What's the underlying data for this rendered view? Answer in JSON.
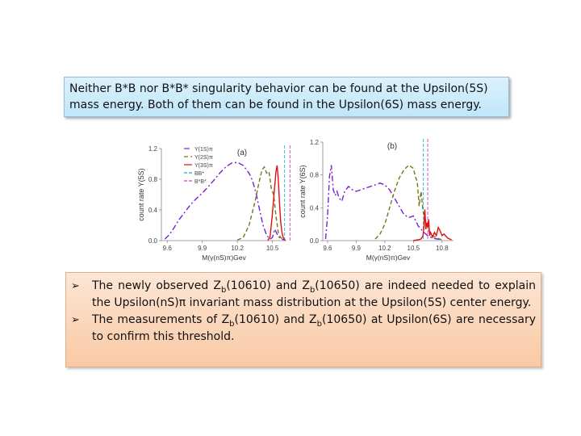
{
  "top_box": {
    "line1": "Neither B*B nor B*B* singularity behavior can be found at the Upsilon(5S)",
    "line2": "mass energy. Both of them can be found in the Upsilon(6S) mass energy."
  },
  "bottom_box": {
    "bullets": [
      {
        "pre": "The newly observed Z",
        "sub1": "b",
        "mid": "(10610) and Z",
        "sub2": "b",
        "post": "(10650) are indeed needed to explain the Upsilon(nS)π invariant mass distribution at the Upsilon(5S) center energy."
      },
      {
        "pre": "The measurements of Z",
        "sub1": "b",
        "mid": "(10610) and Z",
        "sub2": "b",
        "post": "(10650) at Upsilon(6S) are necessary to confirm this threshold."
      }
    ]
  },
  "chart_data": [
    {
      "type": "line",
      "panel_label": "(a)",
      "xlabel": "M(γ(nS)π)Gev",
      "ylabel": "count rate Y(5S)",
      "xlim": [
        9.55,
        10.62
      ],
      "ylim": [
        0.0,
        1.2
      ],
      "xticks": [
        "9.6",
        "9.9",
        "10.2",
        "10.5"
      ],
      "yticks": [
        "0.0",
        "0.4",
        "0.8",
        "1.2"
      ],
      "legend": [
        "Y(1S)π",
        "Y(2S)π",
        "Y(3S)π",
        "BB*",
        "B*B*"
      ],
      "vlines": [
        10.604,
        10.65
      ],
      "series": [
        {
          "name": "Y(1S)π",
          "color": "#7a1fd6",
          "dash": "7,3,2,3",
          "x": [
            9.58,
            9.62,
            9.66,
            9.7,
            9.75,
            9.8,
            9.85,
            9.9,
            9.95,
            10.0,
            10.05,
            10.1,
            10.15,
            10.2,
            10.25,
            10.3,
            10.33,
            10.36,
            10.39,
            10.42,
            10.45,
            10.48,
            10.5,
            10.52,
            10.55,
            10.58,
            10.6
          ],
          "y": [
            0.02,
            0.08,
            0.17,
            0.27,
            0.37,
            0.47,
            0.55,
            0.62,
            0.7,
            0.79,
            0.88,
            0.96,
            1.01,
            1.02,
            0.98,
            0.88,
            0.78,
            0.62,
            0.4,
            0.2,
            0.07,
            0.02,
            0.04,
            0.15,
            0.05,
            0.02,
            0.01
          ]
        },
        {
          "name": "Y(2S)π",
          "color": "#6b7a1a",
          "dash": "5,3",
          "x": [
            10.2,
            10.25,
            10.3,
            10.35,
            10.38,
            10.41,
            10.43,
            10.45,
            10.47,
            10.49,
            10.51,
            10.53,
            10.55,
            10.57,
            10.59,
            10.6
          ],
          "y": [
            0.01,
            0.04,
            0.2,
            0.5,
            0.72,
            0.92,
            0.96,
            0.88,
            0.9,
            0.68,
            0.6,
            0.32,
            0.1,
            0.04,
            0.02,
            0.01
          ]
        },
        {
          "name": "Y(3S)π",
          "color": "#e01010",
          "dash": "",
          "x": [
            10.46,
            10.48,
            10.5,
            10.52,
            10.53,
            10.54,
            10.55,
            10.56,
            10.57,
            10.58,
            10.59,
            10.6,
            10.61
          ],
          "y": [
            0.0,
            0.05,
            0.35,
            0.72,
            0.9,
            0.98,
            0.8,
            0.5,
            0.25,
            0.12,
            0.05,
            0.02,
            0.0
          ]
        }
      ]
    },
    {
      "type": "line",
      "panel_label": "(b)",
      "xlabel": "M(γ(nS)π)Gev",
      "ylabel": "count rate Y(6S)",
      "xlim": [
        9.55,
        10.92
      ],
      "ylim": [
        0.0,
        1.2
      ],
      "xticks": [
        "9.6",
        "9.9",
        "10.2",
        "10.5",
        "10.8"
      ],
      "yticks": [
        "0.0",
        "0.4",
        "0.8",
        "1.2"
      ],
      "legend": [],
      "vlines": [
        10.604,
        10.65
      ],
      "series": [
        {
          "name": "Y(1S)π",
          "color": "#7a1fd6",
          "dash": "7,3,2,3",
          "x": [
            9.58,
            9.6,
            9.62,
            9.64,
            9.66,
            9.68,
            9.7,
            9.72,
            9.75,
            9.78,
            9.82,
            9.86,
            9.9,
            9.95,
            10.0,
            10.05,
            10.1,
            10.15,
            10.2,
            10.25,
            10.3,
            10.35,
            10.4,
            10.45,
            10.5,
            10.55,
            10.58,
            10.61,
            10.65,
            10.7,
            10.75,
            10.8
          ],
          "y": [
            0.02,
            0.3,
            0.78,
            0.92,
            0.62,
            0.55,
            0.6,
            0.52,
            0.48,
            0.6,
            0.66,
            0.62,
            0.6,
            0.62,
            0.64,
            0.66,
            0.68,
            0.7,
            0.68,
            0.62,
            0.52,
            0.42,
            0.32,
            0.28,
            0.3,
            0.18,
            0.14,
            0.1,
            0.06,
            0.03,
            0.02,
            0.01
          ]
        },
        {
          "name": "Y(2S)π",
          "color": "#6b7a1a",
          "dash": "5,3",
          "x": [
            10.1,
            10.15,
            10.2,
            10.25,
            10.3,
            10.35,
            10.4,
            10.45,
            10.5,
            10.52,
            10.54,
            10.56,
            10.58,
            10.6,
            10.62,
            10.66,
            10.7,
            10.75,
            10.8
          ],
          "y": [
            0.02,
            0.08,
            0.2,
            0.4,
            0.6,
            0.76,
            0.86,
            0.92,
            0.88,
            0.78,
            0.72,
            0.42,
            0.6,
            0.36,
            0.28,
            0.12,
            0.06,
            0.03,
            0.01
          ]
        },
        {
          "name": "Y(3S)π",
          "color": "#e01010",
          "dash": "",
          "x": [
            10.5,
            10.55,
            10.58,
            10.6,
            10.61,
            10.62,
            10.63,
            10.64,
            10.65,
            10.66,
            10.67,
            10.68,
            10.7,
            10.72,
            10.74,
            10.76,
            10.78,
            10.8,
            10.82,
            10.86,
            10.9
          ],
          "y": [
            0.0,
            0.01,
            0.02,
            0.06,
            0.16,
            0.38,
            0.14,
            0.22,
            0.16,
            0.26,
            0.06,
            0.1,
            0.04,
            0.1,
            0.06,
            0.16,
            0.12,
            0.06,
            0.08,
            0.03,
            0.01
          ]
        }
      ]
    }
  ]
}
